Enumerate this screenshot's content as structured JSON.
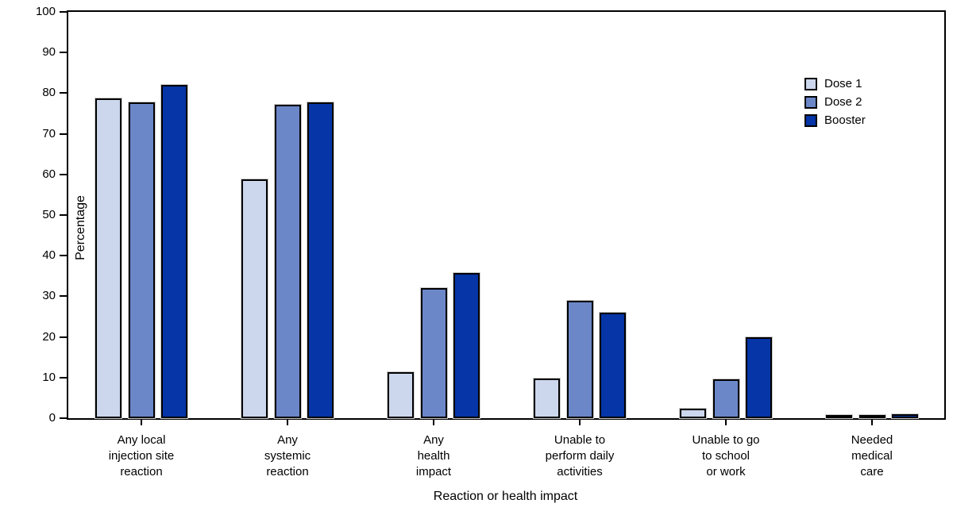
{
  "chart_data": {
    "type": "bar",
    "title": "",
    "xlabel": "Reaction or health impact",
    "ylabel": "Percentage",
    "ylim": [
      0,
      100
    ],
    "ytick_step": 10,
    "grid": false,
    "legend_position": "upper right",
    "frame": true,
    "bar_outline_color": "#000000",
    "categories": [
      "Any local\ninjection site\nreaction",
      "Any\nsystemic\nreaction",
      "Any\nhealth\nimpact",
      "Unable to\nperform daily\nactivities",
      "Unable to go\nto school\nor work",
      "Needed\nmedical\ncare"
    ],
    "series": [
      {
        "name": "Dose 1",
        "color": "#ccd6ec",
        "values": [
          78.7,
          58.8,
          11.3,
          9.8,
          2.4,
          0.6
        ]
      },
      {
        "name": "Dose 2",
        "color": "#6b87c8",
        "values": [
          77.8,
          77.2,
          32.0,
          28.9,
          9.5,
          0.7
        ]
      },
      {
        "name": "Booster",
        "color": "#0535a6",
        "values": [
          82.0,
          77.8,
          35.8,
          25.9,
          20.0,
          0.9
        ]
      }
    ]
  }
}
